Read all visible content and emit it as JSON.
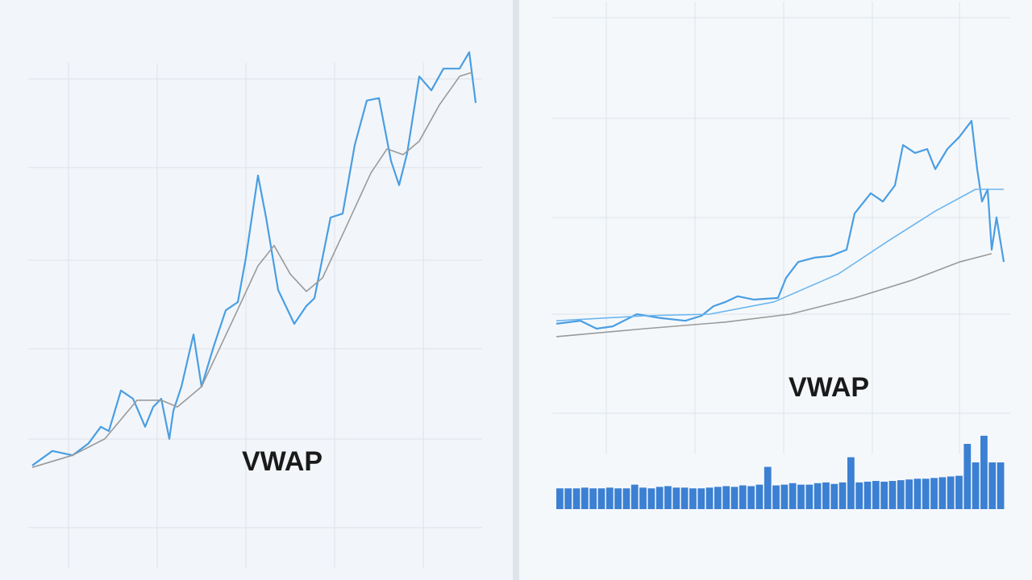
{
  "chart_data": [
    {
      "type": "line",
      "annotation": "VWAP",
      "xlim": [
        0,
        550
      ],
      "ylim": [
        0,
        100
      ],
      "grid": true,
      "series": [
        {
          "color": "#4a9ee2",
          "x": [
            0,
            25,
            50,
            70,
            85,
            95,
            110,
            125,
            140,
            150,
            160,
            170,
            175,
            185,
            200,
            210,
            225,
            240,
            255,
            265,
            280,
            290,
            305,
            325,
            340,
            350,
            370,
            385,
            400,
            415,
            430,
            445,
            455,
            465,
            480,
            495,
            510,
            530,
            542,
            550
          ],
          "values": [
            13.7,
            16.7,
            15.8,
            18.3,
            21.7,
            20.8,
            29.2,
            27.5,
            21.7,
            25.8,
            27.5,
            19.2,
            25,
            30,
            40.8,
            30,
            38.3,
            45.8,
            47.5,
            56.7,
            73.7,
            65,
            50,
            43,
            46.7,
            48.3,
            65,
            65.8,
            80,
            89.2,
            89.7,
            76.7,
            71.7,
            78.3,
            94.2,
            91.3,
            95.8,
            95.8,
            99.2,
            88.7
          ]
        },
        {
          "color": "#9a9a9a",
          "x": [
            0,
            50,
            90,
            130,
            160,
            180,
            210,
            250,
            280,
            300,
            320,
            340,
            360,
            390,
            420,
            440,
            460,
            480,
            505,
            530,
            545
          ],
          "values": [
            13.3,
            15.8,
            19.2,
            27.2,
            27.2,
            25.8,
            30,
            44.2,
            55,
            59.2,
            53.3,
            49.7,
            52.5,
            63.3,
            74.2,
            79.2,
            78,
            80.8,
            88.3,
            94.2,
            95
          ]
        }
      ]
    },
    {
      "type": "line",
      "annotation": "VWAP",
      "xlim": [
        0,
        555
      ],
      "ylim": [
        0,
        100
      ],
      "grid": true,
      "series": [
        {
          "color": "#4a9ee2",
          "x": [
            0,
            30,
            50,
            70,
            100,
            130,
            160,
            180,
            195,
            210,
            225,
            245,
            275,
            285,
            300,
            320,
            340,
            360,
            370,
            390,
            405,
            420,
            430,
            445,
            460,
            470,
            485,
            500,
            515,
            522,
            528,
            535,
            540,
            546,
            555
          ],
          "values": [
            9.3,
            10.2,
            7.8,
            8.5,
            12.2,
            11,
            10.2,
            11.7,
            14.6,
            15.9,
            17.6,
            16.6,
            17.1,
            23.2,
            28,
            29.3,
            29.8,
            31.7,
            42.7,
            48.8,
            46.3,
            51.2,
            63.4,
            61,
            62.2,
            56.1,
            62.2,
            65.9,
            70.7,
            56.1,
            46.3,
            50,
            31.7,
            41.5,
            28
          ]
        },
        {
          "color": "#6cb6ee",
          "x": [
            0,
            110,
            190,
            270,
            350,
            410,
            470,
            520,
            555
          ],
          "values": [
            10.2,
            11.7,
            12.2,
            15.9,
            24.4,
            34.1,
            43.4,
            50,
            50
          ]
        },
        {
          "color": "#9a9a9a",
          "x": [
            0,
            110,
            210,
            290,
            370,
            440,
            500,
            540
          ],
          "values": [
            5.4,
            7.8,
            9.8,
            12.2,
            17.1,
            22.4,
            28,
            30.5
          ]
        }
      ]
    },
    {
      "type": "bar",
      "color": "#3b80d2",
      "ylim": [
        0,
        100
      ],
      "values": [
        28,
        28,
        28,
        29,
        28,
        28,
        29,
        28,
        28,
        33,
        29,
        28,
        30,
        31,
        29,
        29,
        28,
        28,
        29,
        30,
        31,
        30,
        32,
        31,
        33,
        57,
        32,
        33,
        35,
        33,
        33,
        35,
        36,
        34,
        36,
        70,
        36,
        37,
        38,
        37,
        38,
        39,
        40,
        41,
        41,
        42,
        43,
        44,
        45,
        88,
        63,
        99,
        63,
        63
      ]
    }
  ]
}
